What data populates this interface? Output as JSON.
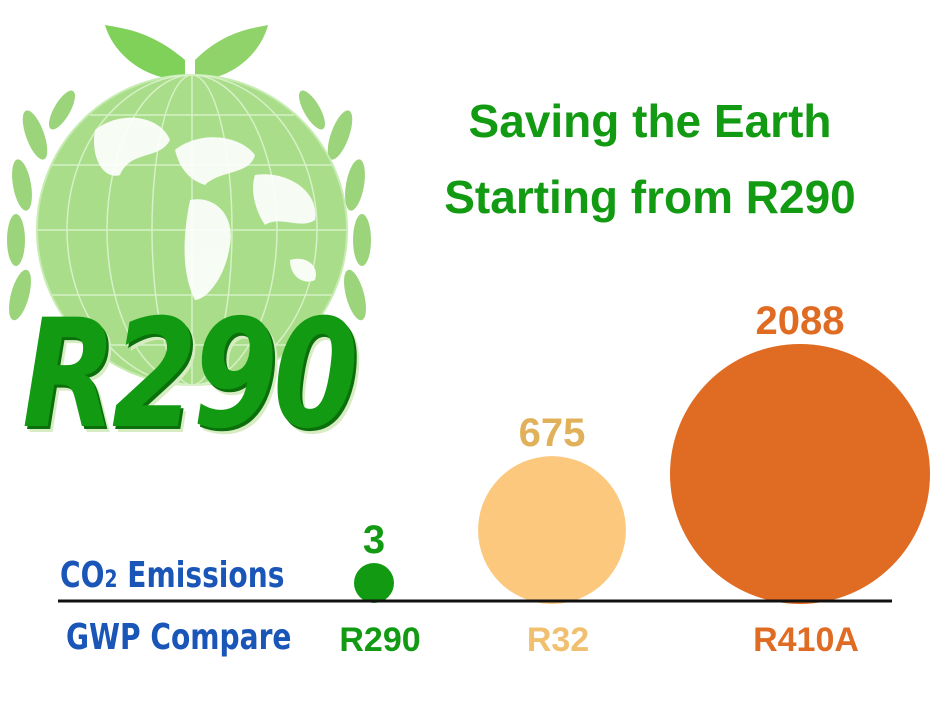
{
  "logo": {
    "text": "R290"
  },
  "headline": {
    "line1": "Saving the Earth",
    "line2": "Starting from R290"
  },
  "labels": {
    "emissions_prefix": "CO",
    "emissions_sub": "2",
    "emissions_suffix": " Emissions",
    "gwp": "GWP Compare"
  },
  "colors": {
    "green": "#129a12",
    "light_green": "#8fd36a",
    "yellow": "#fbc87d",
    "orange": "#e06b23",
    "blue": "#1a55b8"
  },
  "chart_data": {
    "type": "bubble",
    "categories": [
      "R290",
      "R32",
      "R410A"
    ],
    "values": [
      3,
      675,
      2088
    ],
    "colors": [
      "#129a12",
      "#fbc87d",
      "#e06b23"
    ],
    "value_label_colors": [
      "#129a12",
      "#e0b15a",
      "#e06b23"
    ],
    "category_label_colors": [
      "#129a12",
      "#f0c070",
      "#e06b23"
    ]
  }
}
